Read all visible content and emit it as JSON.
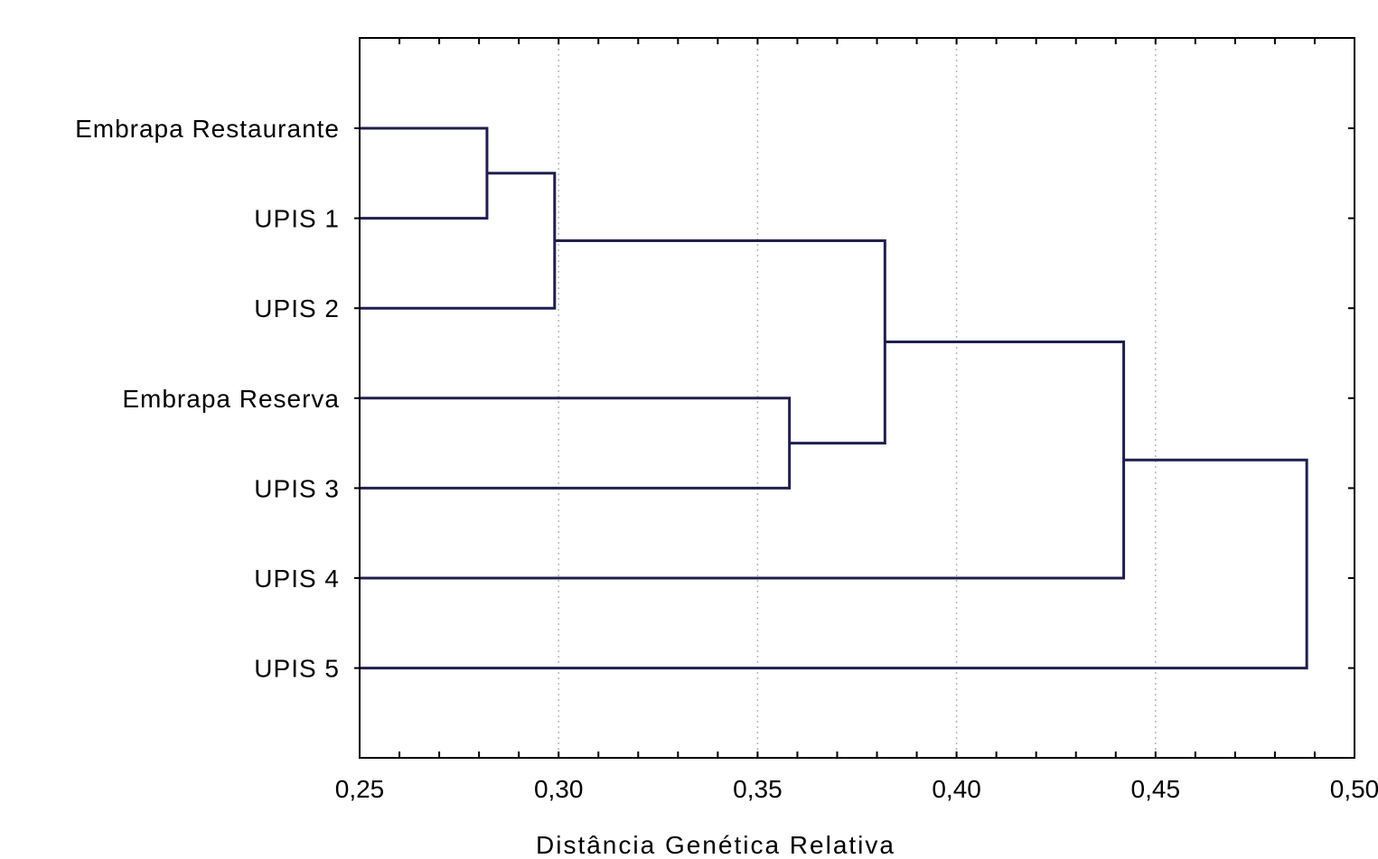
{
  "chart_data": {
    "type": "dendrogram",
    "orientation": "horizontal",
    "xlabel": "Distância Genética Relativa",
    "xlim": [
      0.25,
      0.5
    ],
    "xticks": [
      0.25,
      0.3,
      0.35,
      0.4,
      0.45,
      0.5
    ],
    "xtick_labels": [
      "0,25",
      "0,30",
      "0,35",
      "0,40",
      "0,45",
      "0,50"
    ],
    "grid": true,
    "leaves": [
      "Embrapa Restaurante",
      "UPIS 1",
      "UPIS 2",
      "Embrapa Reserva",
      "UPIS 3",
      "UPIS 4",
      "UPIS 5"
    ],
    "merges": [
      {
        "left": "Embrapa Restaurante",
        "right": "UPIS 1",
        "distance": 0.282
      },
      {
        "left": "merge-1",
        "right": "UPIS 2",
        "distance": 0.299
      },
      {
        "left": "Embrapa Reserva",
        "right": "UPIS 3",
        "distance": 0.358
      },
      {
        "left": "merge-2",
        "right": "merge-3",
        "distance": 0.382
      },
      {
        "left": "merge-4",
        "right": "UPIS 4",
        "distance": 0.442
      },
      {
        "left": "merge-5",
        "right": "UPIS 5",
        "distance": 0.488
      }
    ],
    "line_color": "#1f1f4f"
  }
}
